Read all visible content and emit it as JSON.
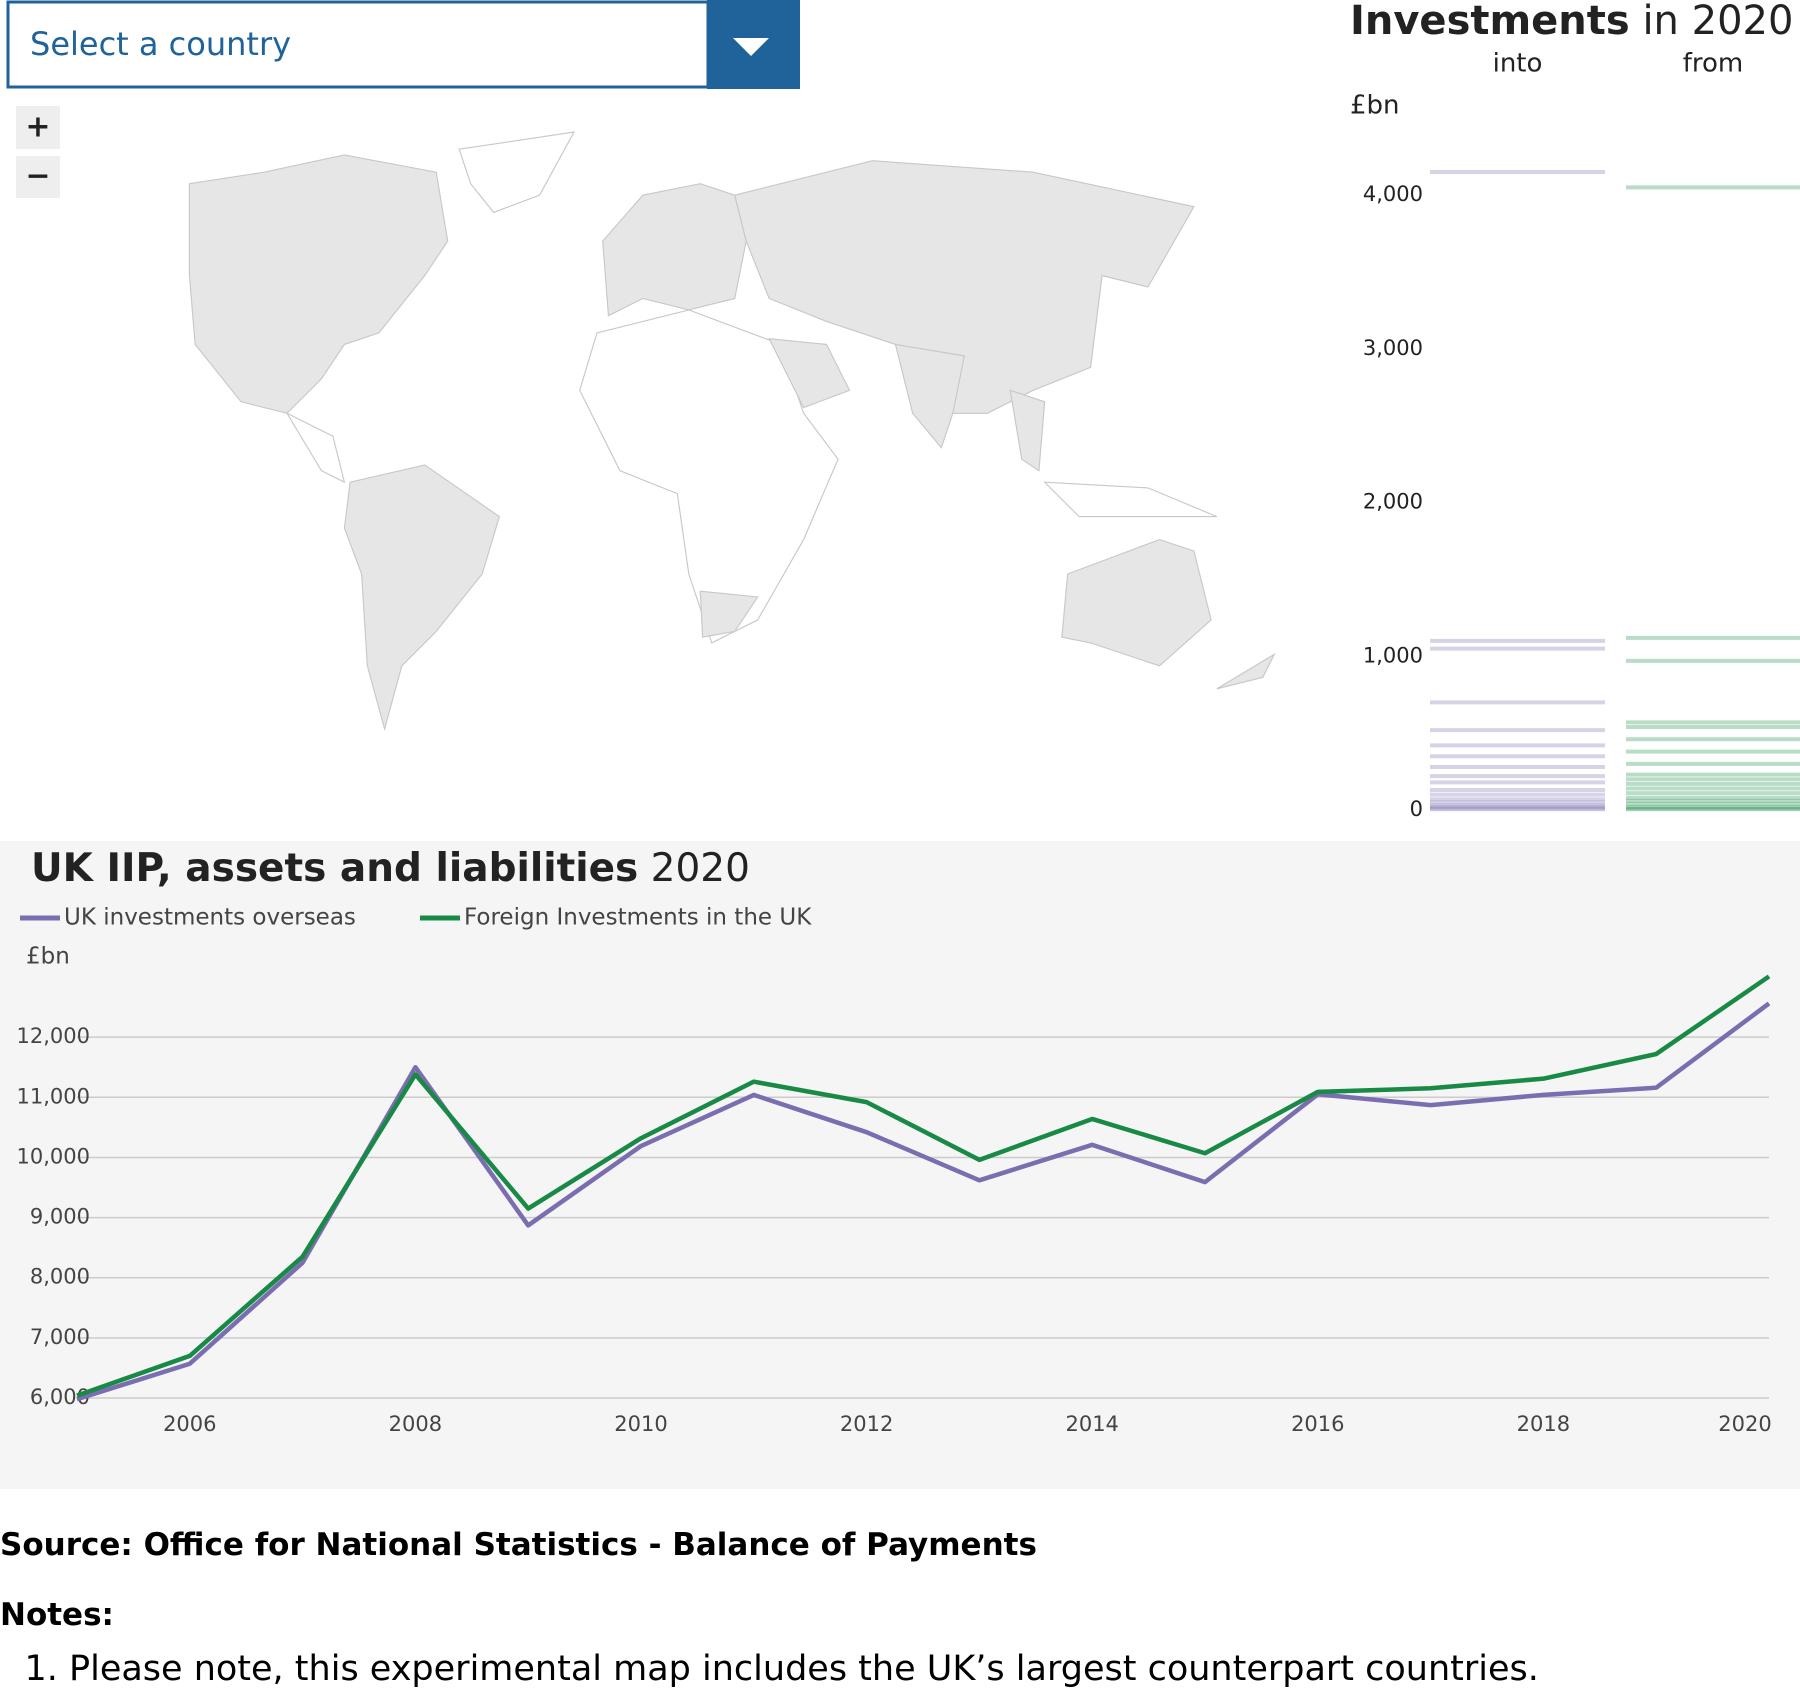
{
  "dropdown": {
    "placeholder": "Select a country"
  },
  "zoom": {
    "in": "+",
    "out": "−"
  },
  "strip_chart": {
    "type": "strip",
    "title": "Investments",
    "title_suffix": "in 2020",
    "unit": "£bn",
    "columns": [
      {
        "name": "into",
        "color": "#7a6eb0",
        "values": [
          4150,
          1100,
          1050,
          700,
          520,
          420,
          350,
          280,
          220,
          180,
          130,
          100,
          70,
          50,
          30,
          20,
          10,
          5
        ]
      },
      {
        "name": "from",
        "color": "#188a45",
        "values": [
          4050,
          1120,
          970,
          570,
          540,
          460,
          380,
          300,
          230,
          200,
          170,
          140,
          110,
          80,
          60,
          40,
          20,
          10,
          5
        ]
      }
    ],
    "ylim": [
      0,
      4300
    ],
    "yticks": [
      0,
      {
        "value": 1000,
        "label": "1,000"
      },
      {
        "value": 2000,
        "label": "2,000"
      },
      {
        "value": 3000,
        "label": "3,000"
      },
      {
        "value": 4000,
        "label": "4,000"
      }
    ]
  },
  "chart_data": {
    "type": "line",
    "title": "UK IIP, assets and liabilities",
    "title_year": "2020",
    "unit": "£bn",
    "x": [
      2005,
      2006,
      2007,
      2008,
      2009,
      2010,
      2011,
      2012,
      2013,
      2014,
      2015,
      2016,
      2017,
      2018,
      2019,
      2020
    ],
    "series": [
      {
        "name": "UK investments overseas",
        "color": "#7a6eb0",
        "values": [
          5980,
          6570,
          8250,
          11500,
          8870,
          10190,
          11040,
          10420,
          9620,
          10210,
          9590,
          11050,
          10870,
          11040,
          11160,
          12560
        ]
      },
      {
        "name": "Foreign Investments in the UK",
        "color": "#188a45",
        "values": [
          6040,
          6700,
          8350,
          11380,
          9150,
          10320,
          11260,
          10920,
          9960,
          10640,
          10070,
          11090,
          11150,
          11310,
          11720,
          13010
        ]
      }
    ],
    "xlim": [
      2005,
      2020
    ],
    "xticks": [
      2006,
      2008,
      2010,
      2012,
      2014,
      2016,
      2018,
      2020
    ],
    "ylim": [
      6000,
      13200
    ],
    "yticks": [
      {
        "value": 6000,
        "label": "6,000"
      },
      {
        "value": 7000,
        "label": "7,000"
      },
      {
        "value": 8000,
        "label": "8,000"
      },
      {
        "value": 9000,
        "label": "9,000"
      },
      {
        "value": 10000,
        "label": "10,000"
      },
      {
        "value": 11000,
        "label": "11,000"
      },
      {
        "value": 12000,
        "label": "12,000"
      }
    ],
    "grid": true
  },
  "source": "Source: Office for National Statistics - Balance of Payments",
  "notes": {
    "heading": "Notes:",
    "items": [
      "Please note, this experimental map includes the UK’s largest counterpart countries."
    ]
  }
}
